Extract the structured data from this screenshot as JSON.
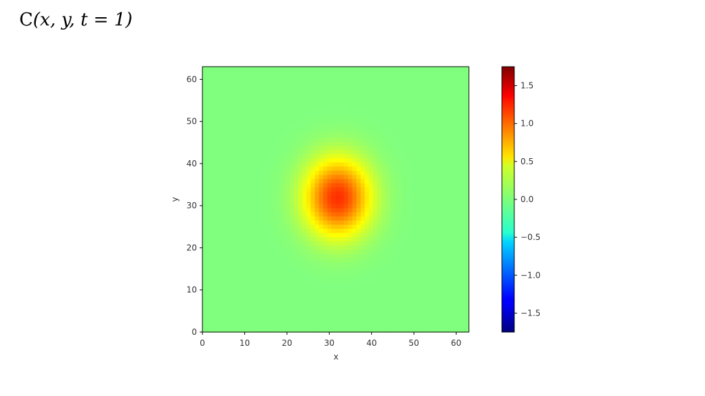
{
  "slide": {
    "title_prefix": "C",
    "title_math": "(x, y, t = 1)"
  },
  "chart_data": {
    "type": "heatmap",
    "title": "",
    "xlabel": "x",
    "ylabel": "y",
    "xlim": [
      0,
      63
    ],
    "ylim": [
      0,
      63
    ],
    "x_ticks": [
      0,
      10,
      20,
      30,
      40,
      50,
      60
    ],
    "y_ticks": [
      0,
      10,
      20,
      30,
      40,
      50,
      60
    ],
    "colormap": "jet",
    "colorbar": {
      "vmin": -1.75,
      "vmax": 1.75,
      "ticks": [
        1.5,
        1.0,
        0.5,
        0.0,
        -0.5,
        -1.0,
        -1.5
      ],
      "tick_labels": [
        "1.5",
        "1.0",
        "0.5",
        "0.0",
        "−0.5",
        "−1.0",
        "−1.5"
      ]
    },
    "field": {
      "grid_size": 64,
      "background_value": 0.0,
      "blob": {
        "center_x": 32,
        "center_y": 32,
        "peak_value": 1.15,
        "sigma_x": 5.5,
        "sigma_y": 6.5
      }
    }
  }
}
